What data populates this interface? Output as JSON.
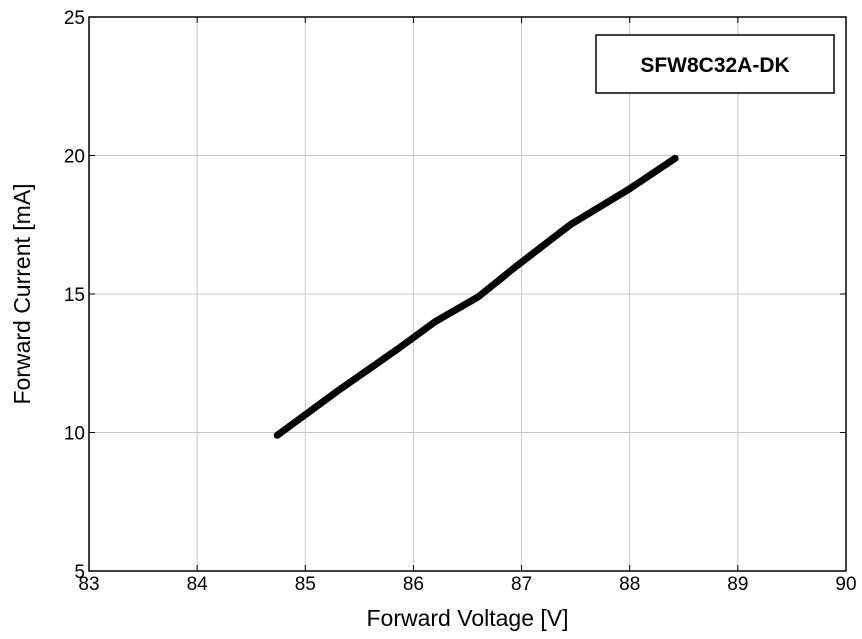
{
  "chart_data": {
    "type": "line",
    "title": "",
    "xlabel": "Forward Voltage [V]",
    "ylabel": "Forward Current [mA]",
    "xlim": [
      83,
      90
    ],
    "ylim": [
      5,
      25
    ],
    "xticks": [
      "83",
      "84",
      "85",
      "86",
      "87",
      "88",
      "89",
      "90"
    ],
    "yticks": [
      "5",
      "10",
      "15",
      "20",
      "25"
    ],
    "grid": true,
    "legend": {
      "text": "SFW8C32A-DK",
      "position": "top-right"
    },
    "series": [
      {
        "name": "SFW8C32A-DK",
        "color": "#000000",
        "x": [
          84.74,
          85.3,
          85.85,
          86.2,
          86.6,
          86.95,
          87.45,
          88.0,
          88.42
        ],
        "y": [
          9.9,
          11.5,
          13.0,
          14.0,
          14.9,
          16.0,
          17.5,
          18.8,
          19.9
        ]
      }
    ]
  }
}
